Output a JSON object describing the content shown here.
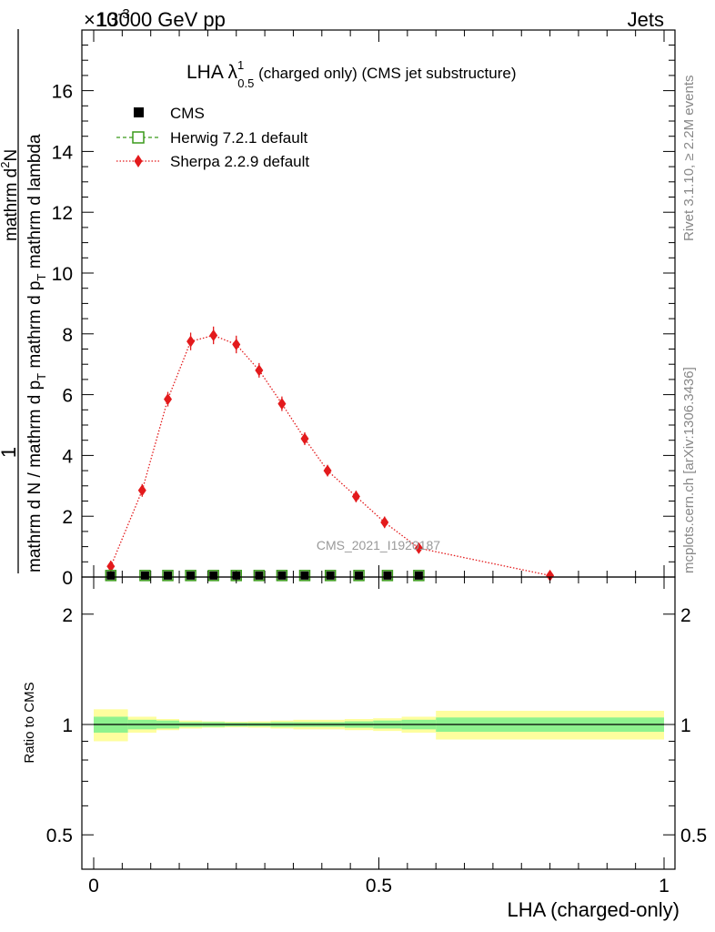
{
  "header": {
    "energy": "13000 GeV pp",
    "category": "Jets",
    "exponent": "×10",
    "exponent_power": "-3"
  },
  "side_labels": {
    "rivet": "Rivet 3.1.10, ≥ 2.2M events",
    "mcplots": "mcplots.cern.ch [arXiv:1306.3436]"
  },
  "watermark": "CMS_2021_I1920187",
  "chart_data": [
    {
      "type": "line",
      "title": "LHA λ",
      "title_sup": "1",
      "title_sub": "0.5",
      "title_rest": " (charged only) (CMS jet substructure)",
      "ylabel": {
        "line1": "1",
        "line2": "mathrm d N / mathrm d p",
        "line2_sub": "T",
        "line2_tail": " mathrm d p",
        "line2_sub2": "T",
        "line2_end": " mathrm d lambda",
        "line3": "mathrm d",
        "line3_sup": "2",
        "line3_end": "N"
      },
      "ylim": [
        0,
        18
      ],
      "yticks": [
        0,
        2,
        4,
        6,
        8,
        10,
        12,
        14,
        16
      ],
      "xlim": [
        -0.02,
        1.02
      ],
      "legend": [
        {
          "name": "CMS",
          "style": "black-square"
        },
        {
          "name": "Herwig 7.2.1 default",
          "style": "green-open-square-dashed"
        },
        {
          "name": "Sherpa 2.2.9 default",
          "style": "red-diamond-dotted"
        }
      ],
      "series": [
        {
          "name": "CMS",
          "x": [
            0.03,
            0.09,
            0.13,
            0.17,
            0.21,
            0.25,
            0.29,
            0.33,
            0.37,
            0.415,
            0.465,
            0.515,
            0.57
          ],
          "values": [
            0.05,
            0.05,
            0.05,
            0.05,
            0.05,
            0.05,
            0.05,
            0.05,
            0.05,
            0.05,
            0.05,
            0.05,
            0.05
          ]
        },
        {
          "name": "Herwig 7.2.1 default",
          "x": [
            0.03,
            0.09,
            0.13,
            0.17,
            0.21,
            0.25,
            0.29,
            0.33,
            0.37,
            0.415,
            0.465,
            0.515,
            0.57
          ],
          "values": [
            0.05,
            0.05,
            0.05,
            0.05,
            0.05,
            0.05,
            0.05,
            0.05,
            0.05,
            0.05,
            0.05,
            0.05,
            0.05
          ]
        },
        {
          "name": "Sherpa 2.2.9 default",
          "x": [
            0.03,
            0.085,
            0.13,
            0.17,
            0.21,
            0.25,
            0.29,
            0.33,
            0.37,
            0.41,
            0.46,
            0.51,
            0.57,
            0.8
          ],
          "values": [
            0.35,
            2.85,
            5.85,
            7.75,
            7.95,
            7.65,
            6.8,
            5.7,
            4.55,
            3.5,
            2.65,
            1.8,
            0.95,
            0.05
          ],
          "errors": [
            0.1,
            0.12,
            0.15,
            0.2,
            0.2,
            0.2,
            0.15,
            0.15,
            0.12,
            0.1,
            0.1,
            0.1,
            0.08,
            0.05
          ]
        }
      ]
    },
    {
      "type": "area",
      "ylabel": "Ratio to CMS",
      "xlabel": "LHA (charged-only)",
      "xlim": [
        -0.02,
        1.02
      ],
      "xticks": [
        0,
        0.5,
        1
      ],
      "xtick_labels": [
        "0",
        "0.5",
        "1"
      ],
      "ylim": [
        0.4,
        2.4
      ],
      "yticks": [
        0.5,
        1,
        2
      ],
      "ytick_labels": [
        "0.5",
        "1",
        "2"
      ],
      "bin_edges": [
        0,
        0.06,
        0.11,
        0.15,
        0.19,
        0.23,
        0.27,
        0.31,
        0.35,
        0.39,
        0.44,
        0.49,
        0.54,
        0.6,
        1.0
      ],
      "stat_band": [
        0.05,
        0.03,
        0.025,
        0.015,
        0.015,
        0.012,
        0.012,
        0.015,
        0.015,
        0.015,
        0.02,
        0.025,
        0.03,
        0.045
      ],
      "total_band": [
        0.1,
        0.05,
        0.035,
        0.025,
        0.02,
        0.018,
        0.02,
        0.025,
        0.03,
        0.03,
        0.035,
        0.04,
        0.05,
        0.09
      ],
      "ratio_line": 1.0
    }
  ],
  "colors": {
    "stat_band": "#8ef28e",
    "total_band": "#fefe9e",
    "sherpa": "#e31a1c",
    "herwig": "#3a9a1a",
    "cms": "#000000",
    "side_text": "#888888"
  }
}
